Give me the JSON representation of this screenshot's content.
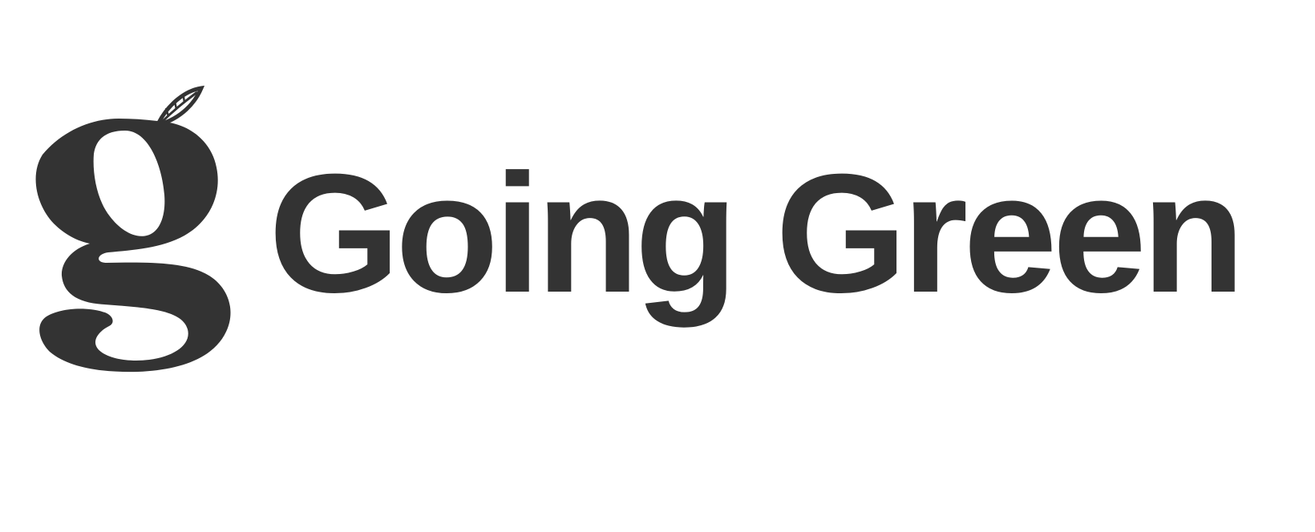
{
  "brand": {
    "name": "Going Green",
    "mark_letter": "g",
    "mark_icon": "leaf-icon",
    "color": "#333333"
  }
}
